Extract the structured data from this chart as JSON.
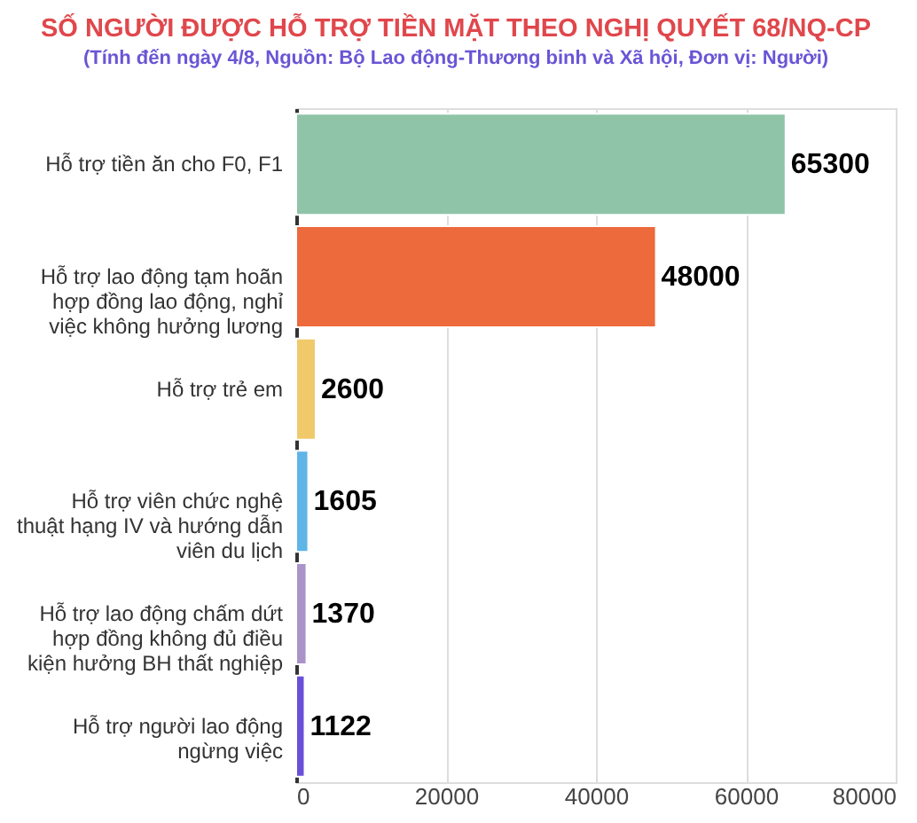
{
  "chart_data": {
    "type": "bar",
    "orientation": "horizontal",
    "title": "SỐ NGƯỜI ĐƯỢC HỖ TRỢ TIỀN MẶT THEO NGHỊ QUYẾT 68/NQ-CP",
    "subtitle": "(Tính đến ngày 4/8, Nguồn: Bộ Lao động-Thương binh và Xã hội, Đơn vị: Người)",
    "categories": [
      "Hỗ trợ tiền ăn cho F0, F1",
      "Hỗ trợ lao động tạm hoãn hợp đồng lao động, nghỉ việc không hưởng lương",
      "Hỗ trợ trẻ em",
      "Hỗ trợ viên chức nghệ thuật hạng IV và hướng dẫn viên du lịch",
      "Hỗ trợ lao động chấm dứt hợp đồng không đủ điều kiện hưởng BH thất nghiệp",
      "Hỗ trợ người lao động ngừng việc"
    ],
    "values": [
      65300,
      48000,
      2600,
      1605,
      1370,
      1122
    ],
    "colors": [
      "#8fc4a9",
      "#ec6a3c",
      "#f0c96a",
      "#5fb5e6",
      "#a993c9",
      "#6a50d8"
    ],
    "xlim": [
      0,
      80000
    ],
    "xticks": [
      0,
      20000,
      40000,
      60000,
      80000
    ],
    "grid": "x",
    "data_labels": true
  }
}
